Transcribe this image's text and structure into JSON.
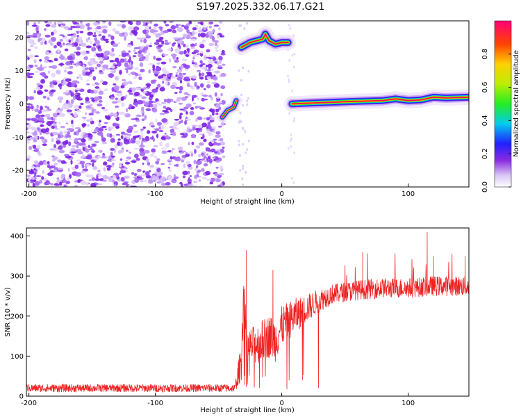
{
  "title": "S197.2025.332.06.17.G21",
  "colors": {
    "snr_line": "#ee2222",
    "noise_speckle": "#7a1fe0",
    "frame": "#000000"
  },
  "chart_data": [
    {
      "type": "heatmap",
      "title": "S197.2025.332.06.17.G21",
      "xlabel": "Height of straight line (km)",
      "ylabel": "Frequency (Hz)",
      "xlim": [
        -202,
        148
      ],
      "ylim": [
        -25,
        25
      ],
      "x_ticks": [
        -200,
        -100,
        0,
        100
      ],
      "x_tick_labels": [
        "-200",
        "-100",
        "0",
        "100"
      ],
      "y_ticks": [
        -20,
        -10,
        0,
        10,
        20
      ],
      "y_tick_labels": [
        "-20",
        "-10",
        "0",
        "10",
        "20"
      ],
      "noise_region_x": [
        -202,
        -47
      ],
      "tracks": [
        {
          "name": "upper track",
          "points": [
            [
              -32,
              17
            ],
            [
              -25,
              18.5
            ],
            [
              -20,
              19
            ],
            [
              -15,
              19.5
            ],
            [
              -13,
              21
            ],
            [
              -10,
              19
            ],
            [
              -5,
              18
            ],
            [
              0,
              18.5
            ],
            [
              5,
              18.5
            ]
          ]
        },
        {
          "name": "lower-left blob",
          "points": [
            [
              -47,
              -4
            ],
            [
              -43,
              -2
            ],
            [
              -38,
              -1
            ],
            [
              -36,
              1
            ]
          ]
        },
        {
          "name": "main track",
          "points": [
            [
              8,
              0
            ],
            [
              20,
              0.2
            ],
            [
              40,
              0.5
            ],
            [
              60,
              0.8
            ],
            [
              80,
              1
            ],
            [
              90,
              1.5
            ],
            [
              100,
              1
            ],
            [
              110,
              1.2
            ],
            [
              120,
              2
            ],
            [
              130,
              1.8
            ],
            [
              148,
              2
            ]
          ]
        }
      ],
      "colorbar": {
        "label": "Normalized spectral amplitude",
        "range": [
          0,
          1
        ],
        "ticks": [
          0.0,
          0.2,
          0.4,
          0.6,
          0.8
        ],
        "tick_labels": [
          "0.0",
          "0.2",
          "0.4",
          "0.6",
          "0.8"
        ]
      }
    },
    {
      "type": "line",
      "xlabel": "Height of straight line (km)",
      "ylabel": "SNR (10 * v/v)",
      "xlim": [
        -202,
        148
      ],
      "ylim": [
        0,
        420
      ],
      "x_ticks": [
        -200,
        -100,
        0,
        100
      ],
      "x_tick_labels": [
        "-200",
        "-100",
        "0",
        "100"
      ],
      "y_ticks": [
        0,
        100,
        200,
        300,
        400
      ],
      "y_tick_labels": [
        "0",
        "100",
        "200",
        "300",
        "400"
      ],
      "series": [
        {
          "name": "SNR",
          "envelope_x": [
            -202,
            -50,
            -37,
            -32,
            -30,
            -28,
            -20,
            -10,
            -5,
            0,
            10,
            20,
            30,
            40,
            60,
            80,
            100,
            120,
            148
          ],
          "envelope_y": [
            20,
            20,
            20,
            90,
            280,
            120,
            130,
            150,
            140,
            175,
            200,
            220,
            240,
            255,
            265,
            270,
            270,
            275,
            275
          ],
          "spread": [
            10,
            10,
            10,
            50,
            60,
            45,
            50,
            55,
            55,
            50,
            45,
            35,
            30,
            25,
            25,
            25,
            25,
            25,
            25
          ],
          "spikes": [
            [
              -28,
              365
            ],
            [
              -7,
              315
            ],
            [
              64,
              360
            ],
            [
              115,
              410
            ],
            [
              120,
              350
            ],
            [
              145,
              350
            ]
          ]
        }
      ]
    }
  ]
}
